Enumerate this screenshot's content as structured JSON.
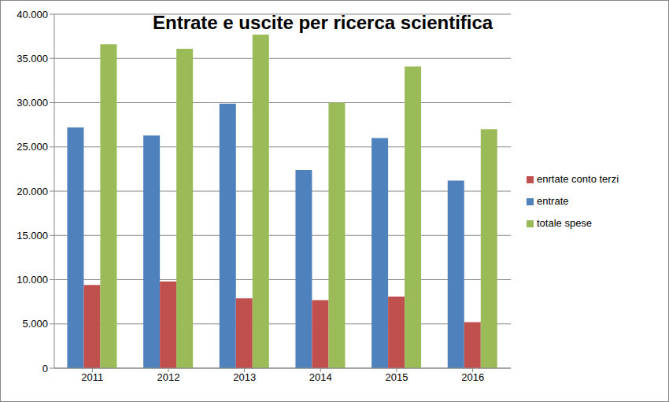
{
  "chart_data": {
    "type": "bar",
    "title": "Entrate e uscite per ricerca scientifica",
    "categories": [
      "2011",
      "2012",
      "2013",
      "2014",
      "2015",
      "2016"
    ],
    "series": [
      {
        "name": "entrate",
        "color": "#4f81bd",
        "values": [
          27200,
          26300,
          29900,
          22400,
          26000,
          21200
        ]
      },
      {
        "name": "enrtate conto terzi",
        "color": "#c0504d",
        "values": [
          9400,
          9800,
          7900,
          7700,
          8100,
          5200
        ]
      },
      {
        "name": "totale spese",
        "color": "#9bbb59",
        "values": [
          36600,
          36100,
          37700,
          30000,
          34100,
          27000
        ]
      }
    ],
    "ylim": [
      0,
      40000
    ],
    "yticks": [
      0,
      {
        "value": 5000,
        "label": "5.000"
      },
      {
        "value": 10000,
        "label": "10.000"
      },
      {
        "value": 15000,
        "label": "15.000"
      },
      {
        "value": 20000,
        "label": "20.000"
      },
      {
        "value": 25000,
        "label": "25.000"
      },
      {
        "value": 30000,
        "label": "30.000"
      },
      {
        "value": 35000,
        "label": "35.000"
      },
      {
        "value": 40000,
        "label": "40.000"
      }
    ],
    "grid": true,
    "legend": "right"
  }
}
